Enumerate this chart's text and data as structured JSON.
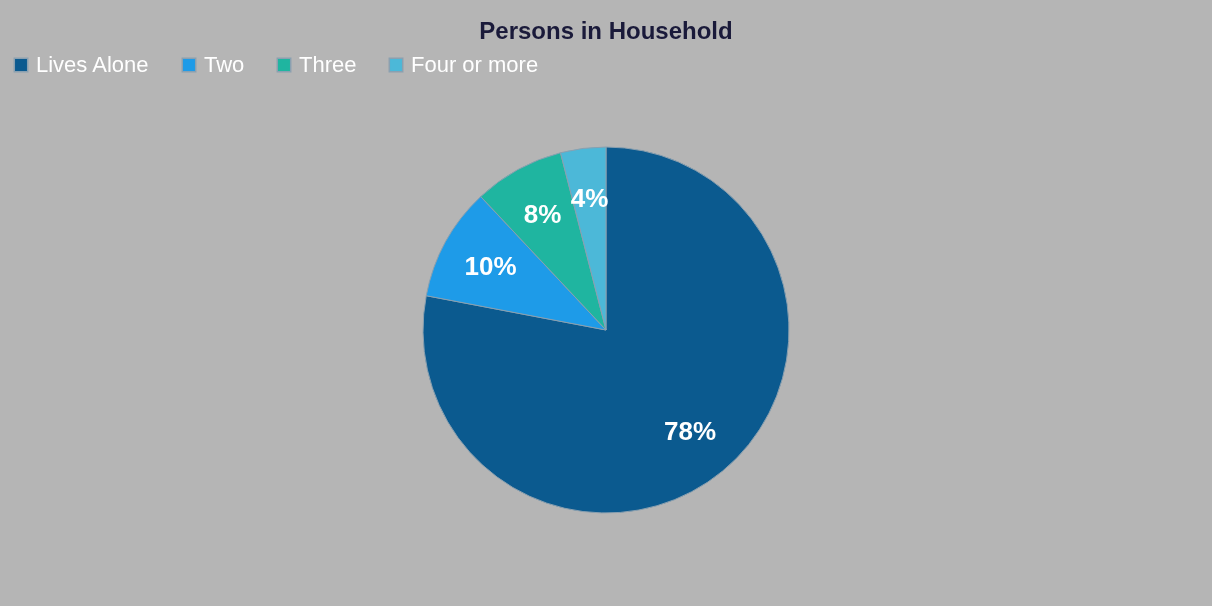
{
  "chart_data": {
    "type": "pie",
    "title": "Persons in Household",
    "categories": [
      "Lives Alone",
      "Two",
      "Three",
      "Four or more"
    ],
    "values": [
      78,
      10,
      8,
      4
    ],
    "colors": [
      "#0b5a8f",
      "#1e9be8",
      "#1fb5a0",
      "#4cb8d8"
    ],
    "value_labels": [
      "78%",
      "10%",
      "8%",
      "4%"
    ],
    "legend": "top"
  }
}
